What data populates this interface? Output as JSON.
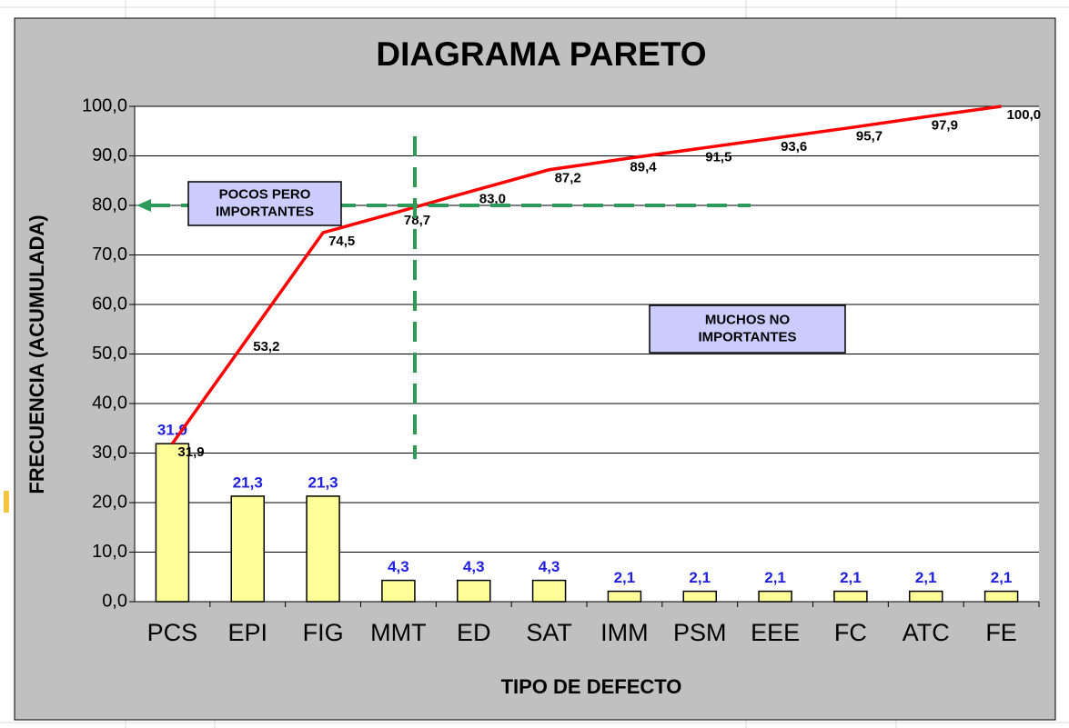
{
  "chart_data": {
    "type": "pareto",
    "title": "DIAGRAMA PARETO",
    "y_label": "FRECUENCIA (ACUMULADA)",
    "x_label": "TIPO DE DEFECTO",
    "categories": [
      "PCS",
      "EPI",
      "FIG",
      "MMT",
      "ED",
      "SAT",
      "IMM",
      "PSM",
      "EEE",
      "FC",
      "ATC",
      "FE"
    ],
    "series": [
      {
        "type": "bar",
        "color": "#ffff99",
        "values": [
          31.9,
          21.3,
          21.3,
          4.3,
          4.3,
          4.3,
          2.1,
          2.1,
          2.1,
          2.1,
          2.1,
          2.1
        ],
        "value_labels": [
          "31,9",
          "21,3",
          "21,3",
          "4,3",
          "4,3",
          "4,3",
          "2,1",
          "2,1",
          "2,1",
          "2,1",
          "2,1",
          "2,1"
        ]
      },
      {
        "type": "line",
        "color": "#ff0000",
        "values": [
          31.9,
          53.2,
          74.5,
          78.7,
          83.0,
          87.2,
          89.4,
          91.5,
          93.6,
          95.7,
          97.9,
          100.0
        ],
        "value_labels": [
          "31,9",
          "53,2",
          "74,5",
          "78,7",
          "83,0",
          "87,2",
          "89,4",
          "91,5",
          "93,6",
          "95,7",
          "97,9",
          "100,0"
        ]
      }
    ],
    "ylim": [
      0,
      100
    ],
    "yticks": [
      {
        "value": 0,
        "label": "0,0"
      },
      {
        "value": 10,
        "label": "10,0"
      },
      {
        "value": 20,
        "label": "20,0"
      },
      {
        "value": 30,
        "label": "30,0"
      },
      {
        "value": 40,
        "label": "40,0"
      },
      {
        "value": 50,
        "label": "50,0"
      },
      {
        "value": 60,
        "label": "60,0"
      },
      {
        "value": 70,
        "label": "70,0"
      },
      {
        "value": 80,
        "label": "80,0"
      },
      {
        "value": 90,
        "label": "90,0"
      },
      {
        "value": 100,
        "label": "100,0"
      }
    ],
    "grid": true,
    "annotations": [
      {
        "lines": [
          "POCOS PERO",
          "IMPORTANTES"
        ]
      },
      {
        "lines": [
          "MUCHOS NO",
          "IMPORTANTES"
        ]
      }
    ]
  }
}
